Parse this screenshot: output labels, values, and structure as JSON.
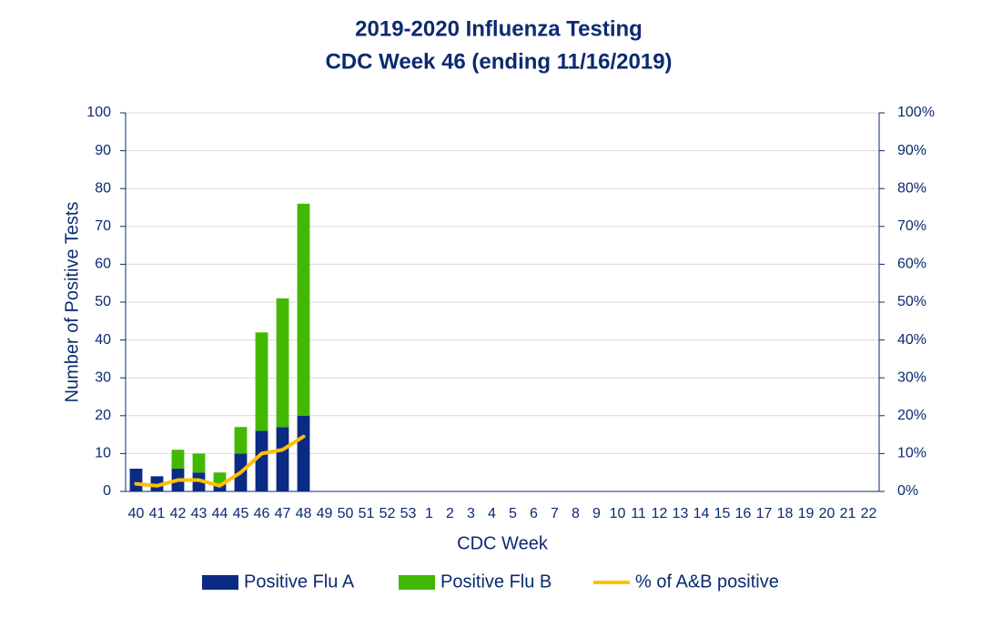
{
  "chart_data": {
    "type": "bar",
    "title": "2019-2020 Influenza Testing",
    "subtitle": "CDC Week 46 (ending 11/16/2019)",
    "x_label": "CDC Week",
    "y_label": "Number of Positive Tests",
    "categories": [
      "40",
      "41",
      "42",
      "43",
      "44",
      "45",
      "46",
      "47",
      "48",
      "49",
      "50",
      "51",
      "52",
      "53",
      "1",
      "2",
      "3",
      "4",
      "5",
      "6",
      "7",
      "8",
      "9",
      "10",
      "11",
      "12",
      "13",
      "14",
      "15",
      "16",
      "17",
      "18",
      "19",
      "20",
      "21",
      "22"
    ],
    "series": [
      {
        "name": "Positive Flu A",
        "type": "bar",
        "color": "#0b2a84",
        "values": [
          6,
          4,
          6,
          5,
          2,
          10,
          16,
          17,
          20,
          null,
          null,
          null,
          null,
          null,
          null,
          null,
          null,
          null,
          null,
          null,
          null,
          null,
          null,
          null,
          null,
          null,
          null,
          null,
          null,
          null,
          null,
          null,
          null,
          null,
          null,
          null
        ]
      },
      {
        "name": "Positive Flu B",
        "type": "bar",
        "color": "#43b800",
        "values": [
          0,
          0,
          5,
          5,
          3,
          7,
          26,
          34,
          56,
          null,
          null,
          null,
          null,
          null,
          null,
          null,
          null,
          null,
          null,
          null,
          null,
          null,
          null,
          null,
          null,
          null,
          null,
          null,
          null,
          null,
          null,
          null,
          null,
          null,
          null,
          null
        ]
      },
      {
        "name": "% of A&B positive",
        "type": "line",
        "axis": "y2",
        "color": "#ffc000",
        "values": [
          2,
          1.5,
          3,
          3,
          1.5,
          5,
          10,
          11,
          14.5,
          null,
          null,
          null,
          null,
          null,
          null,
          null,
          null,
          null,
          null,
          null,
          null,
          null,
          null,
          null,
          null,
          null,
          null,
          null,
          null,
          null,
          null,
          null,
          null,
          null,
          null,
          null
        ]
      }
    ],
    "stacked": true,
    "ylim": [
      0,
      100
    ],
    "yticks": [
      0,
      10,
      20,
      30,
      40,
      50,
      60,
      70,
      80,
      90,
      100
    ],
    "y2lim": [
      0,
      100
    ],
    "y2ticks": [
      {
        "value": 0,
        "label": "0%"
      },
      {
        "value": 10,
        "label": "10%"
      },
      {
        "value": 20,
        "label": "20%"
      },
      {
        "value": 30,
        "label": "30%"
      },
      {
        "value": 40,
        "label": "40%"
      },
      {
        "value": 50,
        "label": "50%"
      },
      {
        "value": 60,
        "label": "60%"
      },
      {
        "value": 70,
        "label": "70%"
      },
      {
        "value": 80,
        "label": "80%"
      },
      {
        "value": 90,
        "label": "90%"
      },
      {
        "value": 100,
        "label": "100%"
      }
    ],
    "grid": true,
    "legend": "bottom"
  }
}
